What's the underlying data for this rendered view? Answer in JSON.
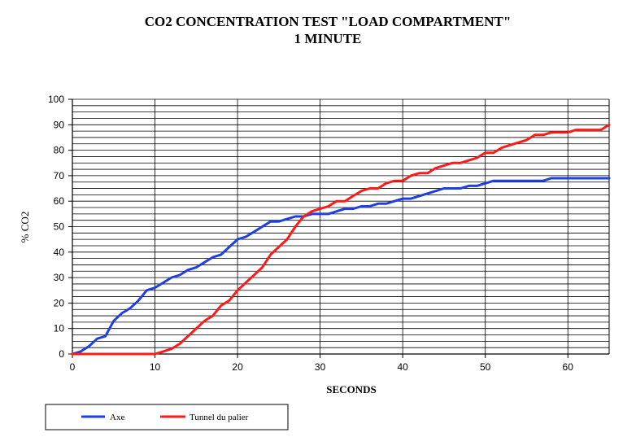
{
  "chart_data": {
    "type": "line",
    "title": "CO2 CONCENTRATION TEST \"LOAD COMPARTMENT\"",
    "subtitle": "1 MINUTE",
    "xlabel": "SECONDS",
    "ylabel": "% CO2",
    "xlim": [
      0,
      65
    ],
    "ylim": [
      0,
      100
    ],
    "xticks": [
      0,
      10,
      20,
      30,
      40,
      50,
      60
    ],
    "yticks": [
      0,
      10,
      20,
      30,
      40,
      50,
      60,
      70,
      80,
      90,
      100
    ],
    "minor_y_step": 2.5,
    "legend_position": "bottom-left",
    "series": [
      {
        "name": "Axe",
        "color": "#1f3fe0",
        "points": [
          [
            0,
            0
          ],
          [
            1,
            1
          ],
          [
            2,
            3
          ],
          [
            3,
            6
          ],
          [
            4,
            7
          ],
          [
            5,
            13
          ],
          [
            6,
            16
          ],
          [
            7,
            18
          ],
          [
            8,
            21
          ],
          [
            9,
            25
          ],
          [
            10,
            26
          ],
          [
            11,
            28
          ],
          [
            12,
            30
          ],
          [
            13,
            31
          ],
          [
            14,
            33
          ],
          [
            15,
            34
          ],
          [
            16,
            36
          ],
          [
            17,
            38
          ],
          [
            18,
            39
          ],
          [
            19,
            42
          ],
          [
            20,
            45
          ],
          [
            21,
            46
          ],
          [
            22,
            48
          ],
          [
            23,
            50
          ],
          [
            24,
            52
          ],
          [
            25,
            52
          ],
          [
            26,
            53
          ],
          [
            27,
            54
          ],
          [
            28,
            54
          ],
          [
            29,
            55
          ],
          [
            30,
            55
          ],
          [
            31,
            55
          ],
          [
            32,
            56
          ],
          [
            33,
            57
          ],
          [
            34,
            57
          ],
          [
            35,
            58
          ],
          [
            36,
            58
          ],
          [
            37,
            59
          ],
          [
            38,
            59
          ],
          [
            39,
            60
          ],
          [
            40,
            61
          ],
          [
            41,
            61
          ],
          [
            42,
            62
          ],
          [
            43,
            63
          ],
          [
            44,
            64
          ],
          [
            45,
            65
          ],
          [
            46,
            65
          ],
          [
            47,
            65
          ],
          [
            48,
            66
          ],
          [
            49,
            66
          ],
          [
            50,
            67
          ],
          [
            51,
            68
          ],
          [
            52,
            68
          ],
          [
            53,
            68
          ],
          [
            54,
            68
          ],
          [
            55,
            68
          ],
          [
            56,
            68
          ],
          [
            57,
            68
          ],
          [
            58,
            69
          ],
          [
            59,
            69
          ],
          [
            60,
            69
          ],
          [
            61,
            69
          ],
          [
            62,
            69
          ],
          [
            63,
            69
          ],
          [
            64,
            69
          ],
          [
            65,
            69
          ]
        ]
      },
      {
        "name": "Tunnel du palier",
        "color": "#ff1a1a",
        "points": [
          [
            0,
            0
          ],
          [
            1,
            0
          ],
          [
            2,
            0
          ],
          [
            3,
            0
          ],
          [
            4,
            0
          ],
          [
            5,
            0
          ],
          [
            6,
            0
          ],
          [
            7,
            0
          ],
          [
            8,
            0
          ],
          [
            9,
            0
          ],
          [
            10,
            0
          ],
          [
            11,
            1
          ],
          [
            12,
            2
          ],
          [
            13,
            4
          ],
          [
            14,
            7
          ],
          [
            15,
            10
          ],
          [
            16,
            13
          ],
          [
            17,
            15
          ],
          [
            18,
            19
          ],
          [
            19,
            21
          ],
          [
            20,
            25
          ],
          [
            21,
            28
          ],
          [
            22,
            31
          ],
          [
            23,
            34
          ],
          [
            24,
            39
          ],
          [
            25,
            42
          ],
          [
            26,
            45
          ],
          [
            27,
            50
          ],
          [
            28,
            54
          ],
          [
            29,
            56
          ],
          [
            30,
            57
          ],
          [
            31,
            58
          ],
          [
            32,
            60
          ],
          [
            33,
            60
          ],
          [
            34,
            62
          ],
          [
            35,
            64
          ],
          [
            36,
            65
          ],
          [
            37,
            65
          ],
          [
            38,
            67
          ],
          [
            39,
            68
          ],
          [
            40,
            68
          ],
          [
            41,
            70
          ],
          [
            42,
            71
          ],
          [
            43,
            71
          ],
          [
            44,
            73
          ],
          [
            45,
            74
          ],
          [
            46,
            75
          ],
          [
            47,
            75
          ],
          [
            48,
            76
          ],
          [
            49,
            77
          ],
          [
            50,
            79
          ],
          [
            51,
            79
          ],
          [
            52,
            81
          ],
          [
            53,
            82
          ],
          [
            54,
            83
          ],
          [
            55,
            84
          ],
          [
            56,
            86
          ],
          [
            57,
            86
          ],
          [
            58,
            87
          ],
          [
            59,
            87
          ],
          [
            60,
            87
          ],
          [
            61,
            88
          ],
          [
            62,
            88
          ],
          [
            63,
            88
          ],
          [
            64,
            88
          ],
          [
            65,
            90
          ]
        ]
      }
    ]
  }
}
